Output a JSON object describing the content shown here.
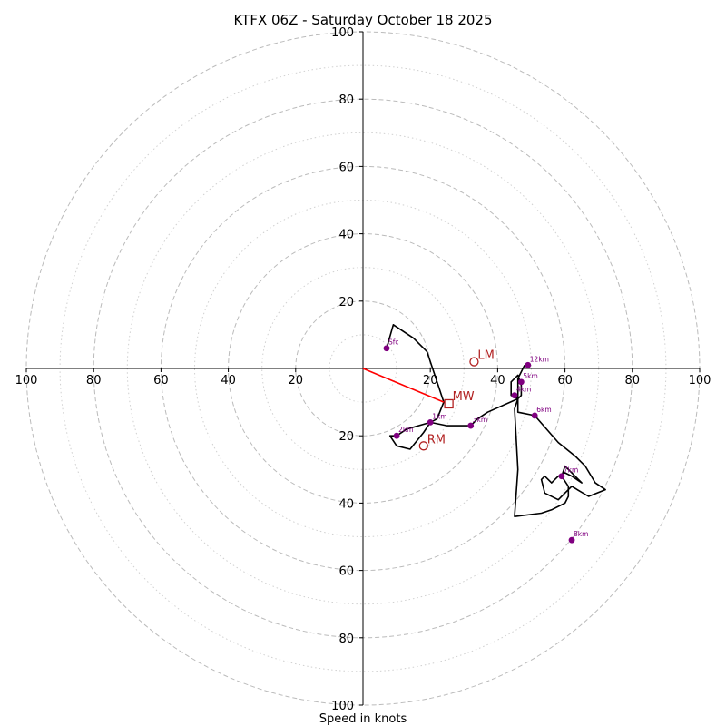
{
  "chart_data": {
    "type": "hodograph",
    "title": "KTFX 06Z - Saturday October 18 2025",
    "xlabel": "Speed in knots",
    "range": [
      -100,
      100
    ],
    "ring_major": [
      20,
      40,
      60,
      80,
      100
    ],
    "ring_minor": [
      10,
      30,
      50,
      70,
      90
    ],
    "ticks": {
      "x": [
        {
          "value": -100,
          "label": "100"
        },
        {
          "value": -80,
          "label": "80"
        },
        {
          "value": -60,
          "label": "60"
        },
        {
          "value": -40,
          "label": "40"
        },
        {
          "value": -20,
          "label": "20"
        },
        {
          "value": 20,
          "label": "20"
        },
        {
          "value": 40,
          "label": "40"
        },
        {
          "value": 60,
          "label": "60"
        },
        {
          "value": 80,
          "label": "80"
        },
        {
          "value": 100,
          "label": "100"
        }
      ],
      "y": [
        {
          "value": 100,
          "label": "100"
        },
        {
          "value": 80,
          "label": "80"
        },
        {
          "value": 60,
          "label": "60"
        },
        {
          "value": 40,
          "label": "40"
        },
        {
          "value": 20,
          "label": "20"
        },
        {
          "value": -20,
          "label": "20"
        },
        {
          "value": -40,
          "label": "40"
        },
        {
          "value": -60,
          "label": "60"
        },
        {
          "value": -80,
          "label": "80"
        },
        {
          "value": -100,
          "label": "100"
        }
      ]
    },
    "series": [
      {
        "name": "wind profile",
        "points": [
          [
            7,
            6
          ],
          [
            9,
            13
          ],
          [
            15,
            9
          ],
          [
            19,
            5
          ],
          [
            22,
            -4
          ],
          [
            24,
            -10
          ],
          [
            22,
            -15
          ],
          [
            20,
            -16
          ],
          [
            13,
            -18
          ],
          [
            10,
            -20
          ],
          [
            8,
            -20
          ],
          [
            10,
            -23
          ],
          [
            14,
            -24
          ],
          [
            18,
            -19
          ],
          [
            20,
            -16
          ],
          [
            25,
            -17
          ],
          [
            32,
            -17
          ],
          [
            34,
            -15
          ],
          [
            37,
            -13
          ],
          [
            46,
            -9
          ],
          [
            47,
            -8
          ],
          [
            47,
            -5
          ],
          [
            46,
            -2
          ],
          [
            44,
            -4
          ],
          [
            44,
            -8
          ],
          [
            46,
            -9
          ],
          [
            45,
            -12
          ],
          [
            46,
            -30
          ],
          [
            45,
            -44
          ],
          [
            53,
            -43
          ],
          [
            56,
            -42
          ],
          [
            60,
            -40
          ],
          [
            61,
            -38
          ],
          [
            61,
            -35
          ],
          [
            59,
            -32
          ],
          [
            60,
            -29
          ],
          [
            63,
            -32
          ],
          [
            65,
            -34
          ],
          [
            62,
            -32
          ],
          [
            60,
            -31
          ],
          [
            58,
            -32
          ],
          [
            56,
            -34
          ],
          [
            54,
            -32
          ],
          [
            53,
            -33
          ],
          [
            54,
            -37
          ],
          [
            58,
            -39
          ],
          [
            61,
            -36
          ],
          [
            62,
            -35
          ],
          [
            67,
            -38
          ],
          [
            72,
            -36
          ],
          [
            69,
            -34
          ],
          [
            66,
            -29
          ],
          [
            63,
            -26
          ],
          [
            58,
            -22
          ],
          [
            51,
            -14
          ],
          [
            46,
            -13
          ],
          [
            46,
            -3
          ],
          [
            48,
            1
          ]
        ]
      }
    ],
    "height_markers": [
      {
        "label": "Sfc",
        "u": 7,
        "v": 6
      },
      {
        "label": "1km",
        "u": 20,
        "v": -16
      },
      {
        "label": "2km",
        "u": 10,
        "v": -20
      },
      {
        "label": "3km",
        "u": 32,
        "v": -17
      },
      {
        "label": "4km",
        "u": 45,
        "v": -8
      },
      {
        "label": "5km",
        "u": 47,
        "v": -4
      },
      {
        "label": "6km",
        "u": 51,
        "v": -14
      },
      {
        "label": "7km",
        "u": 59,
        "v": -32
      },
      {
        "label": "8km",
        "u": 62,
        "v": -51
      },
      {
        "label": "12km",
        "u": 49,
        "v": 1
      }
    ],
    "storm_motion": {
      "LM": {
        "label": "LM",
        "u": 33,
        "v": 2
      },
      "RM": {
        "label": "RM",
        "u": 18,
        "v": -23
      },
      "MW": {
        "label": "MW",
        "u": 25.5,
        "v": -10.5
      }
    },
    "shear_vector": {
      "from": [
        0,
        0
      ],
      "to": [
        24,
        -10
      ]
    }
  },
  "colors": {
    "ring": "#bbbbbb",
    "axis": "#000000",
    "profile": "#000000",
    "marker": "#800080",
    "storm": "#b22222",
    "shear": "#ff0000"
  }
}
